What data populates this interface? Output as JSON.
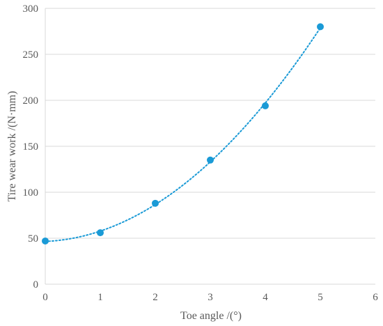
{
  "chart_data": {
    "type": "scatter",
    "title": "",
    "xlabel": "Toe angle /(°)",
    "ylabel": "Tire wear work /(N·mm)",
    "xlim": [
      0,
      6
    ],
    "ylim": [
      0,
      300
    ],
    "xticks": [
      "0",
      "1",
      "2",
      "3",
      "4",
      "5",
      "6"
    ],
    "yticks": [
      "0",
      "50",
      "100",
      "150",
      "200",
      "250",
      "300"
    ],
    "grid": "horizontal",
    "legend": "none",
    "trendline": "polynomial, dotted",
    "color": "#1a9ad6",
    "series": [
      {
        "x": [
          0,
          1,
          2,
          3,
          4,
          5
        ],
        "y": [
          47,
          56,
          88,
          135,
          194,
          280
        ]
      }
    ]
  }
}
